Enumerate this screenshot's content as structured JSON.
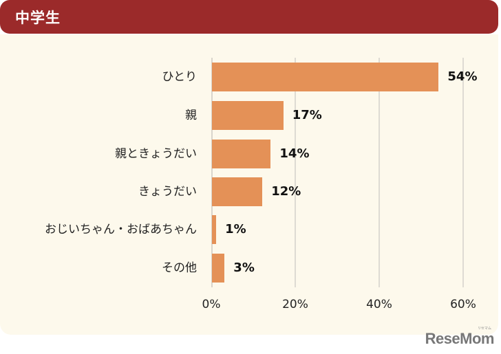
{
  "header": {
    "title": "中学生"
  },
  "colors": {
    "header_bg": "#9b2a2a",
    "panel_bg": "#fdf9ec",
    "bar": "#e49157",
    "grid": "#dedbd3"
  },
  "chart_data": {
    "type": "bar",
    "orientation": "horizontal",
    "title": "中学生",
    "categories": [
      "ひとり",
      "親",
      "親ときょうだい",
      "きょうだい",
      "おじいちゃん・おばあちゃん",
      "その他"
    ],
    "values": [
      54,
      17,
      14,
      12,
      1,
      3
    ],
    "value_labels": [
      "54%",
      "17%",
      "14%",
      "12%",
      "1%",
      "3%"
    ],
    "xlabel": "",
    "ylabel": "",
    "xlim": [
      0,
      60
    ],
    "xticks": [
      "0%",
      "20%",
      "40%",
      "60%"
    ],
    "grid": true,
    "legend": null
  },
  "footer": {
    "logo": "ReseMom",
    "logo_small": "リセマム"
  }
}
